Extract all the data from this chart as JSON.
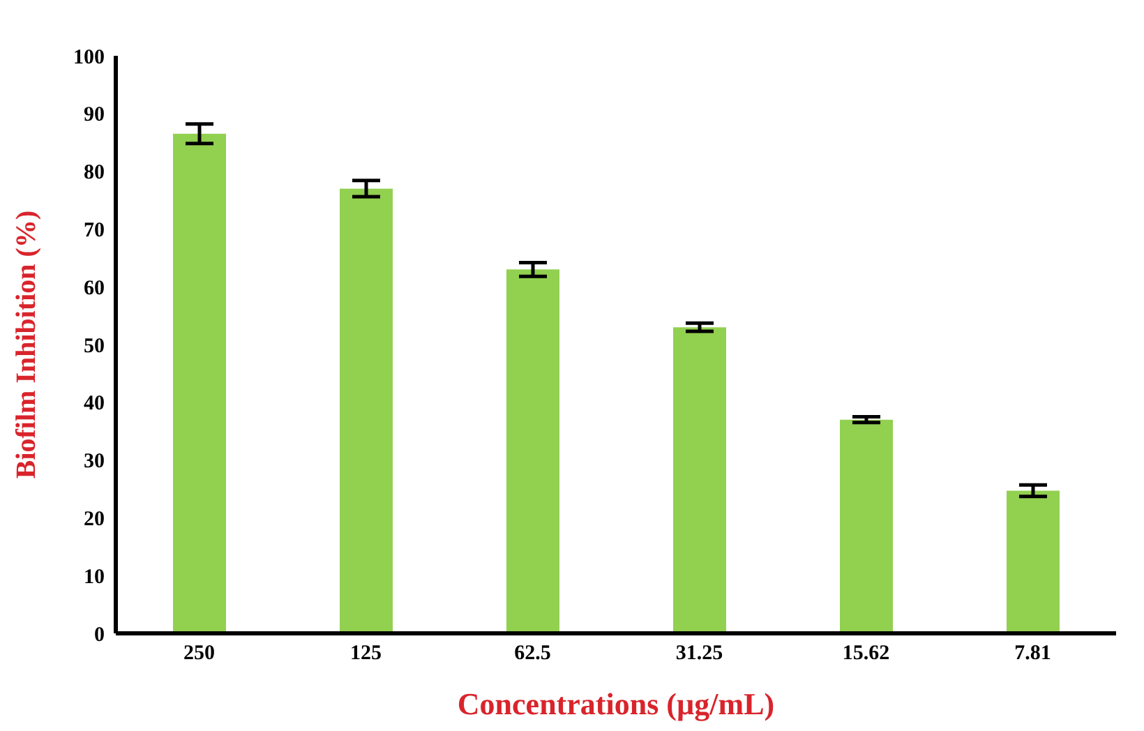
{
  "chart_data": {
    "type": "bar",
    "xlabel": "Concentrations (µg/mL)",
    "ylabel": "Biofilm Inhibition (%)",
    "categories": [
      "250",
      "125",
      "62.5",
      "31.25",
      "15.62",
      "7.81"
    ],
    "values": [
      86.5,
      77,
      63,
      53,
      37,
      24.7
    ],
    "errors": [
      1.7,
      1.4,
      1.2,
      0.7,
      0.5,
      1.0
    ],
    "color": "#92d050",
    "ylim": [
      0,
      100
    ],
    "yticks": [
      0,
      10,
      20,
      30,
      40,
      50,
      60,
      70,
      80,
      90,
      100
    ],
    "grid": false,
    "legend": false
  }
}
